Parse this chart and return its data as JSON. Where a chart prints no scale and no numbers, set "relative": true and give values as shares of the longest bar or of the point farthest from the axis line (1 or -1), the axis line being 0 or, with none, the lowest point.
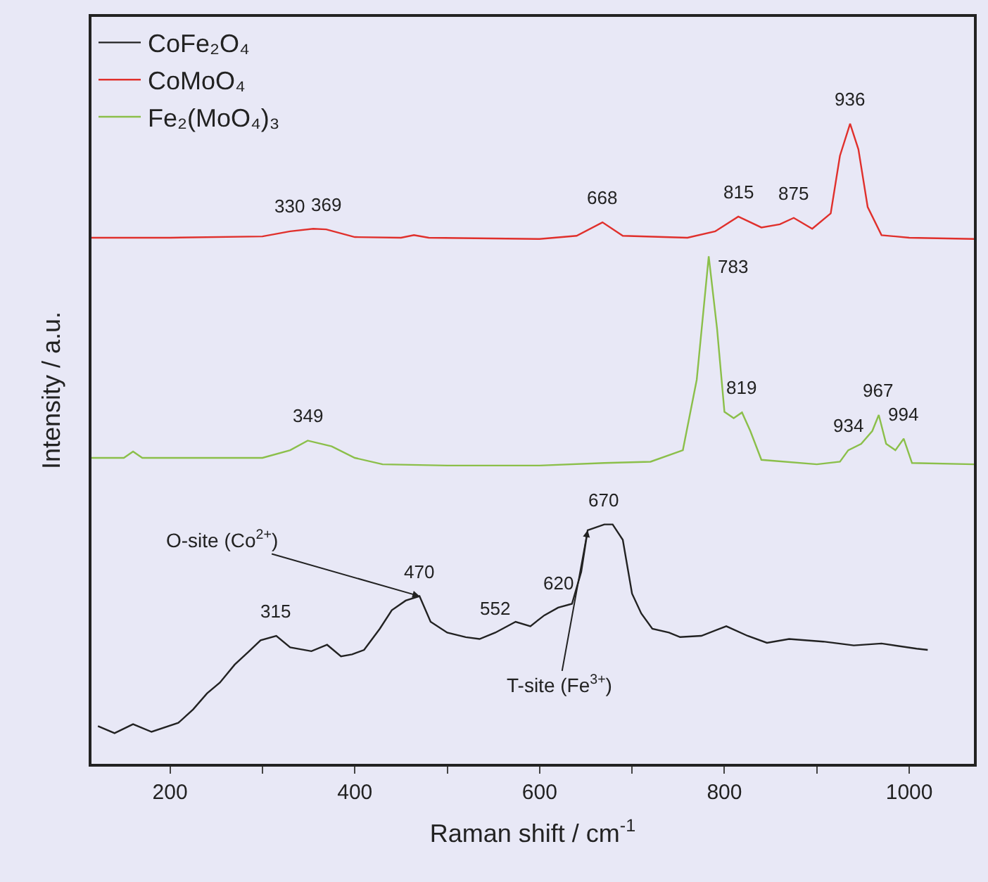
{
  "chart_data": {
    "type": "line",
    "xlabel": "Raman shift / cm$^{-1}$",
    "ylabel": "Intensity / a.u.",
    "relative": true,
    "xlim": [
      115,
      1070
    ],
    "xticks": [
      200,
      {
        "value": 300,
        "label": null
      },
      400,
      {
        "value": 500,
        "label": null
      },
      600,
      {
        "value": 700,
        "label": null
      },
      800,
      {
        "value": 900,
        "label": null
      },
      1000
    ],
    "legend": "top left",
    "grid": false,
    "marker": "none",
    "line_style": "solid",
    "series": [
      {
        "name": "CoFe₂O₄",
        "color": "#222222",
        "x": [
          122,
          140,
          160,
          180,
          209,
          225,
          240,
          254,
          270,
          285,
          298,
          315,
          330,
          353,
          370,
          385,
          397,
          410,
          427,
          440,
          455,
          470,
          482,
          500,
          520,
          535,
          552,
          574,
          590,
          605,
          620,
          635,
          645,
          652,
          670,
          679,
          690,
          700,
          710,
          722,
          740,
          752,
          775,
          802,
          825,
          846,
          870,
          907,
          940,
          970,
          1008,
          1020
        ],
        "values": [
          0.059,
          0.048,
          0.062,
          0.05,
          0.064,
          0.085,
          0.11,
          0.127,
          0.155,
          0.175,
          0.193,
          0.2,
          0.182,
          0.176,
          0.186,
          0.168,
          0.171,
          0.178,
          0.211,
          0.24,
          0.255,
          0.262,
          0.222,
          0.205,
          0.198,
          0.195,
          0.205,
          0.222,
          0.215,
          0.232,
          0.244,
          0.25,
          0.3,
          0.365,
          0.374,
          0.374,
          0.35,
          0.266,
          0.235,
          0.211,
          0.205,
          0.198,
          0.2,
          0.215,
          0.2,
          0.189,
          0.195,
          0.191,
          0.185,
          0.188,
          0.18,
          0.178
        ]
      },
      {
        "name": "CoMoO₄",
        "color": "#e0302c",
        "x": [
          115,
          200,
          300,
          330,
          355,
          369,
          400,
          450,
          464,
          480,
          600,
          640,
          668,
          690,
          760,
          790,
          815,
          840,
          860,
          875,
          895,
          915,
          925,
          936,
          945,
          955,
          970,
          1000,
          1070
        ],
        "values": [
          0.822,
          0.822,
          0.824,
          0.832,
          0.836,
          0.835,
          0.823,
          0.822,
          0.826,
          0.822,
          0.82,
          0.825,
          0.846,
          0.825,
          0.822,
          0.832,
          0.855,
          0.838,
          0.843,
          0.853,
          0.836,
          0.86,
          0.95,
          1.0,
          0.96,
          0.87,
          0.826,
          0.822,
          0.82
        ]
      },
      {
        "name": "Fe₂(MoO₄)₃",
        "color": "#8bbf4a",
        "x": [
          115,
          150,
          160,
          170,
          250,
          300,
          330,
          349,
          375,
          400,
          430,
          500,
          600,
          670,
          720,
          755,
          770,
          783,
          792,
          800,
          810,
          819,
          828,
          840,
          900,
          925,
          934,
          948,
          960,
          967,
          975,
          985,
          994,
          1003,
          1070
        ],
        "values": [
          0.478,
          0.478,
          0.488,
          0.478,
          0.478,
          0.478,
          0.49,
          0.505,
          0.496,
          0.478,
          0.468,
          0.466,
          0.466,
          0.47,
          0.472,
          0.49,
          0.6,
          0.793,
          0.68,
          0.55,
          0.54,
          0.549,
          0.52,
          0.475,
          0.468,
          0.472,
          0.49,
          0.5,
          0.52,
          0.545,
          0.5,
          0.49,
          0.508,
          0.47,
          0.468
        ]
      }
    ],
    "annotations": [
      {
        "text": "330",
        "x": 330,
        "y": 0.832
      },
      {
        "text": "369",
        "x": 369,
        "y": 0.835
      },
      {
        "text": "668",
        "x": 668,
        "y": 0.846
      },
      {
        "text": "815",
        "x": 815,
        "y": 0.855
      },
      {
        "text": "875",
        "x": 875,
        "y": 0.853
      },
      {
        "text": "936",
        "x": 936,
        "y": 1.0
      },
      {
        "text": "349",
        "x": 349,
        "y": 0.505
      },
      {
        "text": "783",
        "x": 783,
        "y": 0.793
      },
      {
        "text": "819",
        "x": 819,
        "y": 0.549
      },
      {
        "text": "934",
        "x": 934,
        "y": 0.49
      },
      {
        "text": "967",
        "x": 967,
        "y": 0.545
      },
      {
        "text": "994",
        "x": 994,
        "y": 0.508
      },
      {
        "text": "315",
        "x": 315,
        "y": 0.2
      },
      {
        "text": "470",
        "x": 470,
        "y": 0.262
      },
      {
        "text": "552",
        "x": 552,
        "y": 0.205
      },
      {
        "text": "620",
        "x": 620,
        "y": 0.244
      },
      {
        "text": "670",
        "x": 670,
        "y": 0.374
      },
      {
        "text": "O-site (Co$^{2+}$)",
        "x": 470,
        "y": 0.262
      },
      {
        "text": "T-site (Fe$^{3+}$)",
        "x": 652,
        "y": 0.365
      }
    ]
  }
}
